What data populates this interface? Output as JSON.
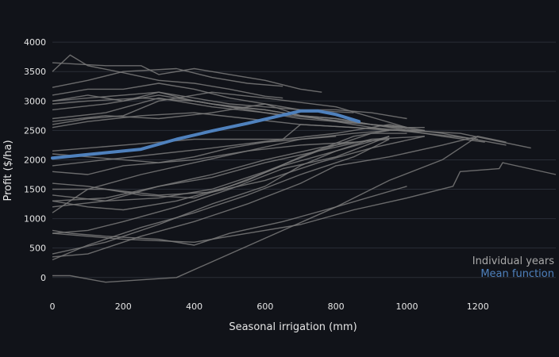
{
  "chart_data": {
    "type": "line",
    "title": "",
    "xlabel": "Seasonal irrigation (mm)",
    "ylabel": "Profit ($/ha)",
    "xlim": [
      0,
      1420
    ],
    "ylim": [
      -300,
      4150
    ],
    "xticks": [
      0,
      200,
      400,
      600,
      800,
      1000,
      1200
    ],
    "yticks": [
      0,
      500,
      1000,
      1500,
      2000,
      2500,
      3000,
      3500,
      4000
    ],
    "grid": "horizontal",
    "legend_position": "bottom-right",
    "colors": {
      "individual": "#7a7a7a",
      "mean": "#4f81bd",
      "background": "#111319",
      "grid": "#2a2e37",
      "text": "#e6e6e6"
    },
    "legend": [
      {
        "label": "Individual years",
        "color": "#a9a9a9"
      },
      {
        "label": "Mean function",
        "color": "#4f81bd"
      }
    ],
    "series": [
      {
        "x": [
          0,
          50,
          100,
          200,
          300,
          400,
          500,
          600,
          650
        ],
        "y": [
          3500,
          3780,
          3600,
          3480,
          3350,
          3300,
          3200,
          3080,
          3050
        ]
      },
      {
        "x": [
          0,
          150,
          250,
          300,
          400,
          500,
          600,
          700,
          760
        ],
        "y": [
          3650,
          3600,
          3600,
          3450,
          3550,
          3450,
          3350,
          3200,
          3150
        ]
      },
      {
        "x": [
          0,
          100,
          200,
          350,
          450,
          550,
          650
        ],
        "y": [
          3230,
          3350,
          3500,
          3550,
          3400,
          3300,
          3250
        ]
      },
      {
        "x": [
          0,
          100,
          200,
          300,
          400,
          500,
          600,
          700,
          850
        ],
        "y": [
          3100,
          3200,
          3200,
          3300,
          3200,
          3050,
          2950,
          2850,
          2800
        ]
      },
      {
        "x": [
          0,
          100,
          200,
          300,
          400,
          500,
          600,
          700,
          800,
          900,
          1000
        ],
        "y": [
          3000,
          3050,
          3100,
          3150,
          3050,
          2950,
          2900,
          2850,
          2850,
          2800,
          2700
        ]
      },
      {
        "x": [
          0,
          100,
          250,
          400,
          500,
          600,
          700,
          800,
          900,
          1000
        ],
        "y": [
          2950,
          3000,
          3050,
          3000,
          2900,
          2850,
          2750,
          2700,
          2600,
          2550
        ]
      },
      {
        "x": [
          0,
          150,
          300,
          450,
          600,
          750,
          900,
          1050,
          1200
        ],
        "y": [
          2850,
          2950,
          3100,
          2950,
          2850,
          2700,
          2550,
          2450,
          2350
        ]
      },
      {
        "x": [
          0,
          100,
          200,
          300,
          400,
          500,
          700,
          900,
          1100,
          1220
        ],
        "y": [
          3000,
          3100,
          3000,
          3150,
          3000,
          2900,
          2700,
          2600,
          2400,
          2300
        ]
      },
      {
        "x": [
          0,
          150,
          300,
          450,
          600,
          750,
          900,
          1100,
          1280
        ],
        "y": [
          2700,
          2800,
          3050,
          2900,
          2800,
          2700,
          2600,
          2450,
          2250
        ]
      },
      {
        "x": [
          0,
          100,
          250,
          400,
          550,
          700,
          850,
          1000,
          1150,
          1350
        ],
        "y": [
          2550,
          2650,
          2750,
          2800,
          2700,
          2600,
          2550,
          2500,
          2450,
          2200
        ]
      },
      {
        "x": [
          0,
          100,
          200,
          300,
          450,
          600,
          800,
          1000,
          1050
        ],
        "y": [
          2600,
          2700,
          2750,
          3000,
          3150,
          3050,
          2900,
          2550,
          2550
        ]
      },
      {
        "x": [
          0,
          150,
          300,
          450,
          600,
          700,
          800,
          900,
          1000
        ],
        "y": [
          2650,
          2750,
          2700,
          2800,
          2950,
          2750,
          2700,
          2600,
          2550
        ]
      },
      {
        "x": [
          0,
          200,
          400,
          650,
          700,
          850,
          950,
          1050
        ],
        "y": [
          2150,
          2250,
          2350,
          2350,
          2600,
          2550,
          2500,
          2500
        ]
      },
      {
        "x": [
          0,
          150,
          300,
          450,
          650,
          800,
          950,
          1050
        ],
        "y": [
          1900,
          2000,
          2100,
          2200,
          2350,
          2450,
          2600,
          2500
        ]
      },
      {
        "x": [
          0,
          100,
          250,
          400,
          550,
          700,
          850,
          950
        ],
        "y": [
          1100,
          1500,
          1750,
          1950,
          2150,
          2350,
          2450,
          2500
        ]
      },
      {
        "x": [
          0,
          150,
          300,
          450,
          600,
          750,
          900,
          1050
        ],
        "y": [
          1300,
          1350,
          1550,
          1700,
          1950,
          2150,
          2350,
          2400
        ]
      },
      {
        "x": [
          0,
          150,
          300,
          450,
          600,
          750,
          900,
          1000
        ],
        "y": [
          1400,
          1300,
          1350,
          1500,
          1800,
          2150,
          2450,
          2450
        ]
      },
      {
        "x": [
          0,
          100,
          250,
          400,
          550,
          700,
          850,
          950
        ],
        "y": [
          1600,
          1550,
          1400,
          1350,
          1650,
          2050,
          2400,
          2500
        ]
      },
      {
        "x": [
          0,
          100,
          200,
          350,
          500,
          650,
          800,
          950
        ],
        "y": [
          1300,
          1200,
          1150,
          1300,
          1550,
          1900,
          2150,
          2400
        ]
      },
      {
        "x": [
          0,
          150,
          300,
          450,
          600,
          750,
          900,
          1050
        ],
        "y": [
          1500,
          1500,
          1400,
          1450,
          1650,
          1950,
          2200,
          2400
        ]
      },
      {
        "x": [
          0,
          100,
          200,
          350,
          500,
          650,
          800,
          950
        ],
        "y": [
          750,
          800,
          950,
          1200,
          1500,
          1850,
          2050,
          2400
        ]
      },
      {
        "x": [
          0,
          100,
          250,
          400,
          550,
          700,
          850,
          950
        ],
        "y": [
          300,
          550,
          850,
          1100,
          1400,
          1750,
          2050,
          2350
        ]
      },
      {
        "x": [
          0,
          150,
          300,
          450,
          600,
          700,
          800,
          900
        ],
        "y": [
          400,
          600,
          900,
          1250,
          1550,
          1900,
          2150,
          2350
        ]
      },
      {
        "x": [
          0,
          100,
          200,
          300,
          400,
          500,
          600,
          700,
          800
        ],
        "y": [
          1800,
          1750,
          1900,
          1950,
          2050,
          2200,
          2300,
          2350,
          2400
        ]
      },
      {
        "x": [
          0,
          100,
          200,
          300,
          400,
          550,
          700,
          850,
          950
        ],
        "y": [
          2100,
          2050,
          2000,
          1950,
          2000,
          2150,
          2250,
          2300,
          2350
        ]
      },
      {
        "x": [
          0,
          150,
          300,
          450,
          600,
          750,
          850
        ],
        "y": [
          1200,
          1300,
          1550,
          1750,
          2000,
          2200,
          2300
        ]
      },
      {
        "x": [
          0,
          50,
          150,
          300,
          400,
          500,
          650,
          800,
          1000
        ],
        "y": [
          800,
          750,
          700,
          650,
          550,
          750,
          950,
          1200,
          1550
        ]
      },
      {
        "x": [
          0,
          100,
          200,
          400,
          550,
          700,
          850,
          1000,
          1130,
          1150,
          1260,
          1270,
          1420
        ],
        "y": [
          750,
          700,
          650,
          600,
          750,
          900,
          1150,
          1350,
          1550,
          1800,
          1850,
          1950,
          1750
        ]
      },
      {
        "x": [
          0,
          50,
          150,
          350,
          500,
          650,
          800,
          950,
          1100,
          1200,
          1280
        ],
        "y": [
          30,
          30,
          -80,
          0,
          400,
          800,
          1200,
          1650,
          2000,
          2400,
          2300
        ]
      },
      {
        "x": [
          0,
          100,
          250,
          400,
          550,
          700,
          800,
          950,
          1100,
          1200
        ],
        "y": [
          350,
          400,
          700,
          950,
          1250,
          1600,
          1900,
          2050,
          2250,
          2400
        ]
      }
    ],
    "mean_series": {
      "name": "Mean function",
      "x": [
        0,
        100,
        250,
        350,
        450,
        550,
        650,
        700,
        750,
        800,
        865
      ],
      "y": [
        2030,
        2090,
        2180,
        2350,
        2490,
        2620,
        2760,
        2830,
        2830,
        2770,
        2650
      ]
    }
  }
}
